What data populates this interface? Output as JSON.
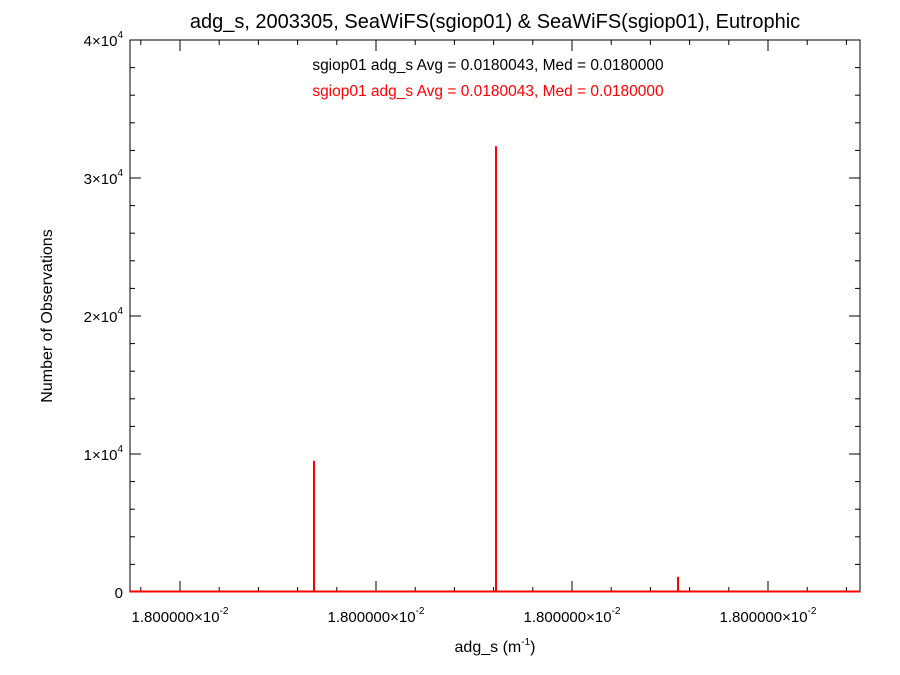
{
  "chart_data": {
    "type": "bar",
    "title": "adg_s, 2003305, SeaWiFS(sgiop01) & SeaWiFS(sgiop01), Eutrophic",
    "xlabel": {
      "text": "adg_s (m",
      "sup": "-1",
      "suffix": ")"
    },
    "ylabel": "Number of Observations",
    "ylim": [
      0,
      40000
    ],
    "x_tick_labels": [
      {
        "mant": "1.800000",
        "exp": "-2"
      },
      {
        "mant": "1.800000",
        "exp": "-2"
      },
      {
        "mant": "1.800000",
        "exp": "-2"
      },
      {
        "mant": "1.800000",
        "exp": "-2"
      }
    ],
    "y_tick_labels": [
      {
        "value": 0,
        "mant": "0",
        "exp": ""
      },
      {
        "value": 10000,
        "mant": "1",
        "exp": "4"
      },
      {
        "value": 20000,
        "mant": "2",
        "exp": "4"
      },
      {
        "value": 30000,
        "mant": "3",
        "exp": "4"
      },
      {
        "value": 40000,
        "mant": "4",
        "exp": "4"
      }
    ],
    "annotations": [
      {
        "text": "sgiop01 adg_s Avg = 0.0180043, Med = 0.0180000",
        "color": "#000000"
      },
      {
        "text": "sgiop01 adg_s Avg = 0.0180043, Med = 0.0180000",
        "color": "#ff0000"
      }
    ],
    "series": [
      {
        "color": "#ff0000",
        "bins": [
          {
            "value": 9500
          },
          {
            "value": 32300
          },
          {
            "value": 1100
          }
        ]
      }
    ],
    "grid": false
  }
}
